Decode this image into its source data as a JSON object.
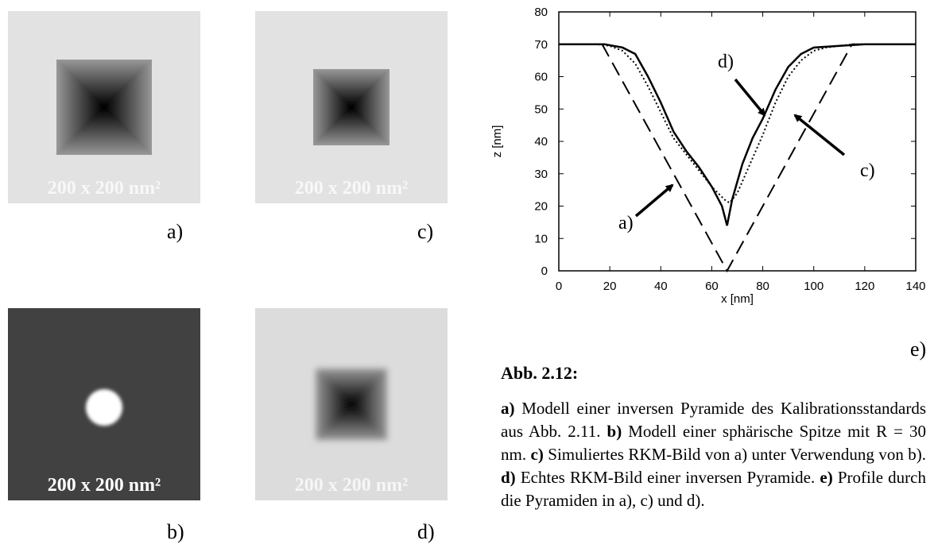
{
  "panels": [
    {
      "label": "a)",
      "scale": "200 x 200 nm²",
      "kind": "pyramid"
    },
    {
      "label": "c)",
      "scale": "200 x 200 nm²",
      "kind": "pyramid-small"
    },
    {
      "label": "b)",
      "scale": "200 x 200 nm²",
      "kind": "sphere"
    },
    {
      "label": "d)",
      "scale": "200 x 200 nm²",
      "kind": "pyramid-real"
    }
  ],
  "chart_data": {
    "type": "line",
    "panel_label": "e)",
    "xlabel": "x [nm]",
    "ylabel": "z [nm]",
    "xlim": [
      0,
      140
    ],
    "ylim": [
      0,
      80
    ],
    "xticks": [
      0,
      20,
      40,
      60,
      80,
      100,
      120,
      140
    ],
    "yticks": [
      0,
      10,
      20,
      30,
      40,
      50,
      60,
      70,
      80
    ],
    "series": [
      {
        "name": "a)",
        "color": "#000000",
        "style": "dashed",
        "x": [
          0,
          17,
          66,
          115,
          140
        ],
        "values": [
          70,
          70,
          0,
          70,
          70
        ]
      },
      {
        "name": "c)",
        "color": "#000000",
        "style": "dotted",
        "x": [
          0,
          15,
          20,
          25,
          30,
          35,
          40,
          45,
          50,
          55,
          60,
          65,
          67,
          70,
          75,
          80,
          85,
          90,
          95,
          100,
          105,
          110,
          115,
          120,
          130,
          140
        ],
        "values": [
          70,
          70,
          69.5,
          68,
          64,
          57,
          49,
          41,
          36,
          31,
          26,
          22,
          21,
          24,
          33,
          42,
          52,
          60,
          65,
          68,
          69,
          69.5,
          70,
          70,
          70,
          70
        ]
      },
      {
        "name": "d)",
        "color": "#000000",
        "style": "solid",
        "x": [
          0,
          18,
          25,
          30,
          35,
          40,
          45,
          50,
          55,
          60,
          64,
          66,
          68,
          72,
          76,
          80,
          85,
          90,
          95,
          100,
          110,
          120,
          130,
          140
        ],
        "values": [
          70,
          70,
          69,
          67,
          60,
          52,
          43,
          37,
          32,
          26,
          20,
          14,
          22,
          33,
          41,
          47,
          56,
          63,
          67,
          69,
          69.5,
          70,
          70,
          70
        ]
      }
    ]
  },
  "caption": {
    "title": "Abb. 2.12:",
    "segments": [
      {
        "text": "a)",
        "bold": true
      },
      {
        "text": " Modell einer inversen Pyramide des Kalibrationsstandards aus Abb. 2.11. "
      },
      {
        "text": "b)",
        "bold": true
      },
      {
        "text": " Modell einer sphärische Spitze mit R = 30 nm. "
      },
      {
        "text": "c)",
        "bold": true
      },
      {
        "text": " Simuliertes RKM-Bild von a) unter Verwendung von b). "
      },
      {
        "text": "d)",
        "bold": true
      },
      {
        "text": " Echtes RKM-Bild einer inversen Pyramide. "
      },
      {
        "text": "e)",
        "bold": true
      },
      {
        "text": " Profile durch die Pyramiden in a), c) und d)."
      }
    ]
  }
}
